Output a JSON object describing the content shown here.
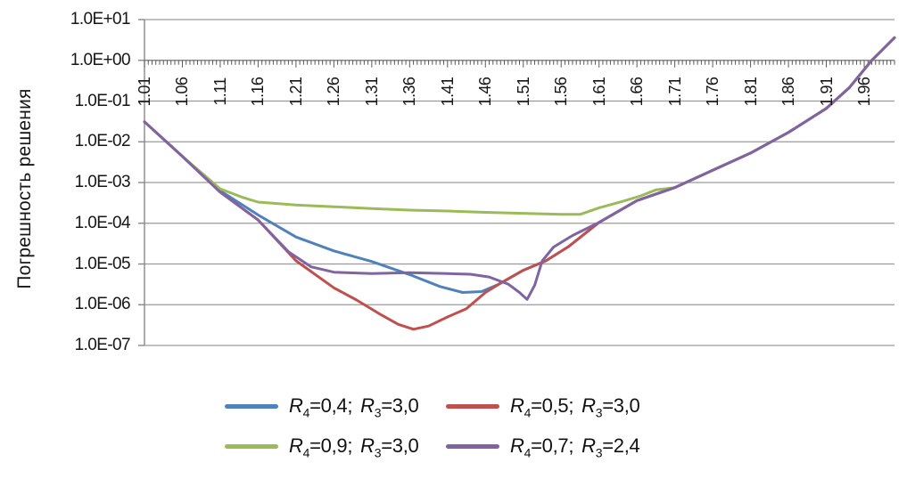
{
  "chart_data": {
    "type": "line",
    "title": "",
    "grid": "horizontal-log-decades",
    "legend_position": "bottom",
    "x_axis": {
      "min": 1.01,
      "max": 2.0,
      "tick_step": 0.05,
      "tick_labels": [
        "1.01",
        "1.06",
        "1.11",
        "1.16",
        "1.21",
        "1.26",
        "1.31",
        "1.36",
        "1.41",
        "1.46",
        "1.51",
        "1.56",
        "1.61",
        "1.66",
        "1.71",
        "1.76",
        "1.81",
        "1.86",
        "1.91",
        "1.96"
      ]
    },
    "y_axis": {
      "title": "Погрешность решения",
      "scale": "log",
      "min": 1e-07,
      "max": 10,
      "tick_labels": [
        "1.0E+01",
        "1.0E+00",
        "1.0E-01",
        "1.0E-02",
        "1.0E-03",
        "1.0E-04",
        "1.0E-05",
        "1.0E-06",
        "1.0E-07"
      ]
    },
    "series": [
      {
        "name": "R4=0,4; R3=3,0",
        "sym": "R",
        "sub_a": "4",
        "val_a": "0,4",
        "sub_b": "3",
        "val_b": "3,0",
        "color": "#4f81bd",
        "points": [
          [
            1.01,
            0.031
          ],
          [
            1.06,
            0.0044
          ],
          [
            1.11,
            0.00063
          ],
          [
            1.16,
            0.00016
          ],
          [
            1.21,
            4.6e-05
          ],
          [
            1.26,
            2.1e-05
          ],
          [
            1.31,
            1.15e-05
          ],
          [
            1.36,
            5.5e-06
          ],
          [
            1.4,
            2.8e-06
          ],
          [
            1.43,
            2e-06
          ],
          [
            1.455,
            2.1e-06
          ],
          [
            1.478,
            3.2e-06
          ],
          [
            1.51,
            7e-06
          ],
          [
            1.54,
            1.2e-05
          ],
          [
            1.57,
            2.7e-05
          ],
          [
            1.61,
            0.000105
          ],
          [
            1.66,
            0.00036
          ],
          [
            1.71,
            0.00075
          ],
          [
            1.76,
            0.002
          ],
          [
            1.81,
            0.0053
          ],
          [
            1.86,
            0.017
          ],
          [
            1.91,
            0.066
          ],
          [
            1.94,
            0.21
          ],
          [
            1.97,
            1.0
          ],
          [
            1.985,
            1.9
          ],
          [
            2.0,
            3.6
          ]
        ]
      },
      {
        "name": "R4=0,5; R3=3,0",
        "sym": "R",
        "sub_a": "4",
        "val_a": "0,5",
        "sub_b": "3",
        "val_b": "3,0",
        "color": "#c0504d",
        "points": [
          [
            1.01,
            0.031
          ],
          [
            1.06,
            0.0044
          ],
          [
            1.11,
            0.00058
          ],
          [
            1.16,
            0.00012
          ],
          [
            1.21,
            1.2e-05
          ],
          [
            1.26,
            2.6e-06
          ],
          [
            1.29,
            1.3e-06
          ],
          [
            1.32,
            6e-07
          ],
          [
            1.345,
            3.3e-07
          ],
          [
            1.365,
            2.5e-07
          ],
          [
            1.385,
            3e-07
          ],
          [
            1.41,
            5e-07
          ],
          [
            1.435,
            8e-07
          ],
          [
            1.46,
            2e-06
          ],
          [
            1.478,
            3.2e-06
          ],
          [
            1.51,
            7e-06
          ],
          [
            1.54,
            1.2e-05
          ],
          [
            1.57,
            2.7e-05
          ],
          [
            1.61,
            0.000105
          ],
          [
            1.66,
            0.00036
          ],
          [
            1.71,
            0.00075
          ],
          [
            1.76,
            0.002
          ],
          [
            1.81,
            0.0053
          ],
          [
            1.86,
            0.017
          ],
          [
            1.91,
            0.066
          ],
          [
            1.94,
            0.21
          ],
          [
            1.97,
            1.0
          ],
          [
            1.985,
            1.9
          ],
          [
            2.0,
            3.6
          ]
        ]
      },
      {
        "name": "R4=0,9; R3=3,0",
        "sym": "R",
        "sub_a": "4",
        "val_a": "0,9",
        "sub_b": "3",
        "val_b": "3,0",
        "color": "#9bbb59",
        "points": [
          [
            1.01,
            0.031
          ],
          [
            1.06,
            0.0044
          ],
          [
            1.11,
            0.0007
          ],
          [
            1.14,
            0.00043
          ],
          [
            1.16,
            0.00033
          ],
          [
            1.21,
            0.00028
          ],
          [
            1.26,
            0.000255
          ],
          [
            1.31,
            0.00023
          ],
          [
            1.36,
            0.00021
          ],
          [
            1.41,
            0.0002
          ],
          [
            1.46,
            0.000185
          ],
          [
            1.51,
            0.000175
          ],
          [
            1.56,
            0.000165
          ],
          [
            1.585,
            0.000165
          ],
          [
            1.61,
            0.00024
          ],
          [
            1.64,
            0.00034
          ],
          [
            1.665,
            0.00047
          ],
          [
            1.685,
            0.00066
          ],
          [
            1.71,
            0.00075
          ],
          [
            1.76,
            0.002
          ],
          [
            1.81,
            0.0053
          ],
          [
            1.86,
            0.017
          ],
          [
            1.91,
            0.066
          ],
          [
            1.94,
            0.21
          ],
          [
            1.97,
            1.0
          ],
          [
            1.985,
            1.9
          ],
          [
            2.0,
            3.6
          ]
        ]
      },
      {
        "name": "R4=0,7; R3=2,4",
        "sym": "R",
        "sub_a": "4",
        "val_a": "0,7",
        "sub_b": "3",
        "val_b": "2,4",
        "color": "#8064a2",
        "points": [
          [
            1.01,
            0.031
          ],
          [
            1.06,
            0.0044
          ],
          [
            1.11,
            0.00058
          ],
          [
            1.16,
            0.00012
          ],
          [
            1.2,
            2e-05
          ],
          [
            1.23,
            8.5e-06
          ],
          [
            1.26,
            6.3e-06
          ],
          [
            1.31,
            5.8e-06
          ],
          [
            1.36,
            6.1e-06
          ],
          [
            1.41,
            5.8e-06
          ],
          [
            1.44,
            5.6e-06
          ],
          [
            1.465,
            4.8e-06
          ],
          [
            1.49,
            3.2e-06
          ],
          [
            1.505,
            2e-06
          ],
          [
            1.515,
            1.35e-06
          ],
          [
            1.525,
            3e-06
          ],
          [
            1.535,
            1.2e-05
          ],
          [
            1.55,
            2.6e-05
          ],
          [
            1.575,
            5e-05
          ],
          [
            1.61,
            0.000105
          ],
          [
            1.66,
            0.00036
          ],
          [
            1.71,
            0.00075
          ],
          [
            1.76,
            0.002
          ],
          [
            1.81,
            0.0053
          ],
          [
            1.86,
            0.017
          ],
          [
            1.91,
            0.066
          ],
          [
            1.94,
            0.21
          ],
          [
            1.97,
            1.0
          ],
          [
            1.985,
            1.9
          ],
          [
            2.0,
            3.6
          ]
        ]
      }
    ],
    "colors": {
      "gridline": "#9a9a9a",
      "axis": "#808080",
      "tick": "#595959",
      "text": "#161616"
    }
  }
}
